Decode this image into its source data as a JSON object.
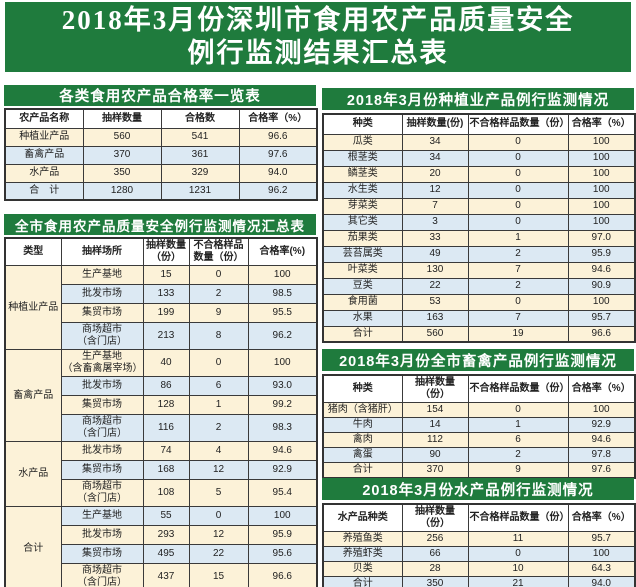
{
  "title": {
    "line1": "2018年3月份深圳市食用农产品质量安全",
    "line2": "例行监测结果汇总表"
  },
  "colors": {
    "banner_green": "#1f7b3d",
    "row_cream": "#fcf2d8",
    "row_blue": "#dce9f3",
    "border": "#3a3a3a"
  },
  "overview_table": {
    "title": "各类食用农产品合格率一览表",
    "headers": [
      "农产品名称",
      "抽样数量",
      "合格数",
      "合格率（%）"
    ],
    "rows": [
      [
        "种植业产品",
        "560",
        "541",
        "96.6"
      ],
      [
        "畜禽产品",
        "370",
        "361",
        "97.6"
      ],
      [
        "水产品",
        "350",
        "329",
        "94.0"
      ],
      [
        "合　计",
        "1280",
        "1231",
        "96.2"
      ]
    ]
  },
  "citywide_table": {
    "title": "全市食用农产品质量安全例行监测情况汇总表",
    "headers": [
      "类型",
      "抽样场所",
      "抽样数量（份）",
      "不合格样品数量（份）",
      "合格率(%)"
    ],
    "groups": [
      {
        "type": "种植业产品",
        "rows": [
          [
            "生产基地",
            "15",
            "0",
            "100"
          ],
          [
            "批发市场",
            "133",
            "2",
            "98.5"
          ],
          [
            "集贸市场",
            "199",
            "9",
            "95.5"
          ],
          [
            "商场超市\n（含门店）",
            "213",
            "8",
            "96.2"
          ]
        ]
      },
      {
        "type": "畜禽产品",
        "rows": [
          [
            "生产基地\n（含畜禽屠宰场）",
            "40",
            "0",
            "100"
          ],
          [
            "批发市场",
            "86",
            "6",
            "93.0"
          ],
          [
            "集贸市场",
            "128",
            "1",
            "99.2"
          ],
          [
            "商场超市\n（含门店）",
            "116",
            "2",
            "98.3"
          ]
        ]
      },
      {
        "type": "水产品",
        "rows": [
          [
            "批发市场",
            "74",
            "4",
            "94.6"
          ],
          [
            "集贸市场",
            "168",
            "12",
            "92.9"
          ],
          [
            "商场超市\n（含门店）",
            "108",
            "5",
            "95.4"
          ]
        ]
      },
      {
        "type": "合计",
        "rows": [
          [
            "生产基地",
            "55",
            "0",
            "100"
          ],
          [
            "批发市场",
            "293",
            "12",
            "95.9"
          ],
          [
            "集贸市场",
            "495",
            "22",
            "95.6"
          ],
          [
            "商场超市\n（含门店）",
            "437",
            "15",
            "96.6"
          ]
        ]
      }
    ]
  },
  "planting_table": {
    "title": "2018年3月份种植业产品例行监测情况",
    "headers": [
      "种类",
      "抽样数量(份)",
      "不合格样品数量（份）",
      "合格率（%）"
    ],
    "rows": [
      [
        "瓜类",
        "34",
        "0",
        "100"
      ],
      [
        "根茎类",
        "34",
        "0",
        "100"
      ],
      [
        "鳞茎类",
        "20",
        "0",
        "100"
      ],
      [
        "水生类",
        "12",
        "0",
        "100"
      ],
      [
        "芽菜类",
        "7",
        "0",
        "100"
      ],
      [
        "其它类",
        "3",
        "0",
        "100"
      ],
      [
        "茄果类",
        "33",
        "1",
        "97.0"
      ],
      [
        "芸苔属类",
        "49",
        "2",
        "95.9"
      ],
      [
        "叶菜类",
        "130",
        "7",
        "94.6"
      ],
      [
        "豆类",
        "22",
        "2",
        "90.9"
      ],
      [
        "食用菌",
        "53",
        "0",
        "100"
      ],
      [
        "水果",
        "163",
        "7",
        "95.7"
      ],
      [
        "合计",
        "560",
        "19",
        "96.6"
      ]
    ]
  },
  "livestock_table": {
    "title": "2018年3月份全市畜禽产品例行监测情况",
    "headers": [
      "种类",
      "抽样数量（份）",
      "不合格样品数量（份）",
      "合格率（%）"
    ],
    "rows": [
      [
        "猪肉（含猪肝）",
        "154",
        "0",
        "100"
      ],
      [
        "牛肉",
        "14",
        "1",
        "92.9"
      ],
      [
        "禽肉",
        "112",
        "6",
        "94.6"
      ],
      [
        "禽蛋",
        "90",
        "2",
        "97.8"
      ],
      [
        "合计",
        "370",
        "9",
        "97.6"
      ]
    ]
  },
  "aquatic_table": {
    "title": "2018年3月份水产品例行监测情况",
    "headers": [
      "水产品种类",
      "抽样数量（份）",
      "不合格样品数量（份）",
      "合格率（%）"
    ],
    "rows": [
      [
        "养殖鱼类",
        "256",
        "11",
        "95.7"
      ],
      [
        "养殖虾类",
        "66",
        "0",
        "100"
      ],
      [
        "贝类",
        "28",
        "10",
        "64.3"
      ],
      [
        "合计",
        "350",
        "21",
        "94.0"
      ]
    ]
  }
}
